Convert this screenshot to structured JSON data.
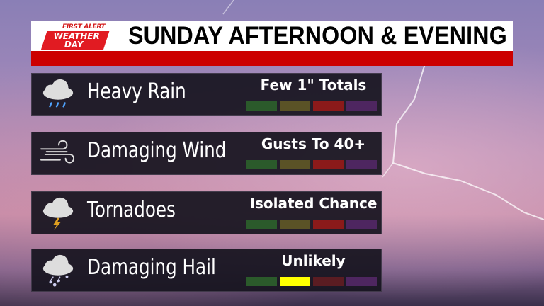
{
  "header": {
    "logo_top": "FIRST ALERT",
    "logo_line1": "WEATHER",
    "logo_line2": "DAY",
    "title": "SUNDAY AFTERNOON & EVENING"
  },
  "level_colors": {
    "active": [
      "#1ee61e",
      "#ffff00",
      "#8b1a1a",
      "#6a2a80"
    ],
    "inactive": [
      "#2b5a2b",
      "#5a5226",
      "#5a1c22",
      "#4e2660"
    ]
  },
  "rows": [
    {
      "label": "Heavy Rain",
      "status": "Few 1\" Totals",
      "icon": "cloud-rain-icon",
      "active_level": 2
    },
    {
      "label": "Damaging Wind",
      "status": "Gusts To 40+",
      "icon": "wind-icon",
      "active_level": 2
    },
    {
      "label": "Tornadoes",
      "status": "Isolated Chance",
      "icon": "cloud-lightning-icon",
      "active_level": 2
    },
    {
      "label": "Damaging Hail",
      "status": "Unlikely",
      "icon": "cloud-hail-icon",
      "active_level": 1
    }
  ]
}
